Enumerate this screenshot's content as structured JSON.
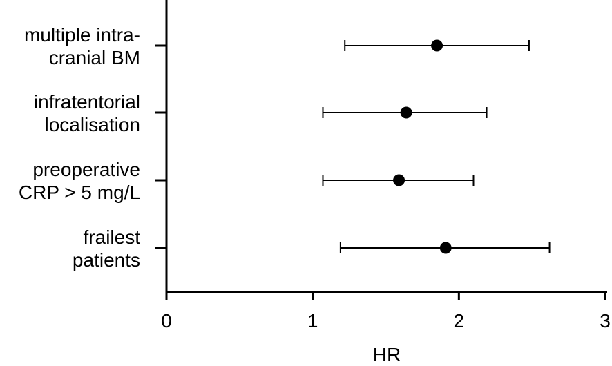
{
  "chart_data": {
    "type": "forest",
    "xlabel": "HR",
    "xlim": [
      0,
      3
    ],
    "x_ticks": [
      "0",
      "1",
      "2",
      "3"
    ],
    "categories": [
      {
        "label_lines": [
          "multiple intra-",
          "cranial BM"
        ],
        "hr": 1.85,
        "ci_low": 1.22,
        "ci_high": 2.48
      },
      {
        "label_lines": [
          "infratentorial",
          "localisation"
        ],
        "hr": 1.64,
        "ci_low": 1.07,
        "ci_high": 2.19
      },
      {
        "label_lines": [
          "preoperative",
          "CRP > 5 mg/L"
        ],
        "hr": 1.59,
        "ci_low": 1.07,
        "ci_high": 2.1
      },
      {
        "label_lines": [
          "frailest",
          "patients"
        ],
        "hr": 1.91,
        "ci_low": 1.19,
        "ci_high": 2.62
      }
    ],
    "grid": false,
    "colors": {
      "marker": "#000000",
      "axis": "#000000"
    }
  }
}
